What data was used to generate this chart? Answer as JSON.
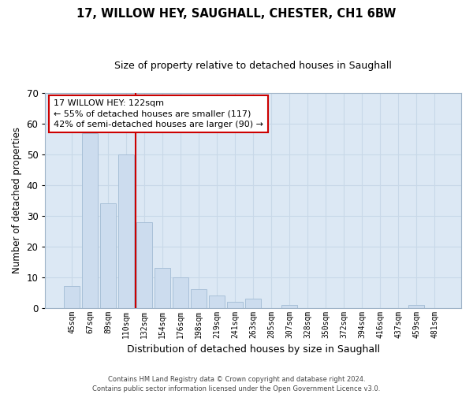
{
  "title1": "17, WILLOW HEY, SAUGHALL, CHESTER, CH1 6BW",
  "title2": "Size of property relative to detached houses in Saughall",
  "xlabel": "Distribution of detached houses by size in Saughall",
  "ylabel": "Number of detached properties",
  "categories": [
    "45sqm",
    "67sqm",
    "89sqm",
    "110sqm",
    "132sqm",
    "154sqm",
    "176sqm",
    "198sqm",
    "219sqm",
    "241sqm",
    "263sqm",
    "285sqm",
    "307sqm",
    "328sqm",
    "350sqm",
    "372sqm",
    "394sqm",
    "416sqm",
    "437sqm",
    "459sqm",
    "481sqm"
  ],
  "values": [
    7,
    57,
    34,
    50,
    28,
    13,
    10,
    6,
    4,
    2,
    3,
    0,
    1,
    0,
    0,
    0,
    0,
    0,
    0,
    1,
    0
  ],
  "bar_color": "#ccdcee",
  "bar_edge_color": "#a8c0d8",
  "vline_color": "#cc0000",
  "annotation_text": "17 WILLOW HEY: 122sqm\n← 55% of detached houses are smaller (117)\n42% of semi-detached houses are larger (90) →",
  "annotation_box_color": "#ffffff",
  "annotation_box_edge_color": "#cc0000",
  "ylim": [
    0,
    70
  ],
  "yticks": [
    0,
    10,
    20,
    30,
    40,
    50,
    60,
    70
  ],
  "grid_color": "#c8d8e8",
  "background_color": "#dce8f4",
  "footnote": "Contains HM Land Registry data © Crown copyright and database right 2024.\nContains public sector information licensed under the Open Government Licence v3.0."
}
